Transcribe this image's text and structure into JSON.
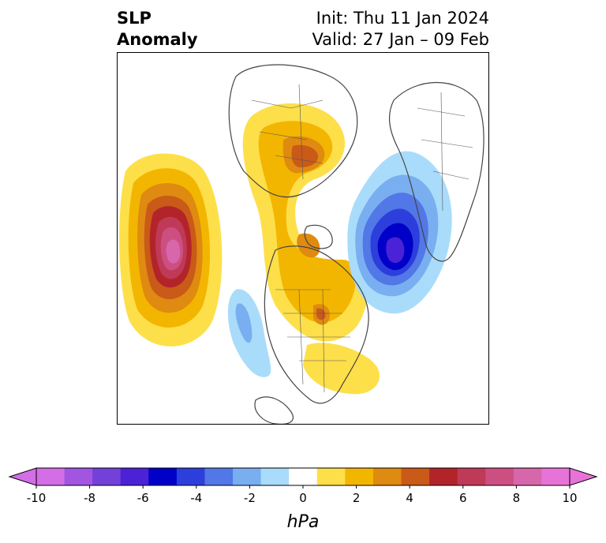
{
  "header": {
    "title_line1": "SLP",
    "title_line2": "Anomaly",
    "init": "Init: Thu 11 Jan 2024",
    "valid": "Valid: 27 Jan – 09 Feb"
  },
  "colorbar": {
    "unit": "hPa",
    "tick_labels": [
      "-10",
      "-8",
      "-6",
      "-4",
      "-2",
      "0",
      "2",
      "4",
      "6",
      "8",
      "10"
    ],
    "levels": [
      -10,
      -9,
      -8,
      -7,
      -6,
      -5,
      -4,
      -3,
      -2,
      -1,
      1,
      2,
      3,
      4,
      5,
      6,
      7,
      8,
      9,
      10
    ],
    "colors": [
      "#d36ee6",
      "#a155e0",
      "#7340d9",
      "#4b22d6",
      "#0000c8",
      "#2c3fdc",
      "#5277e6",
      "#79aff0",
      "#a9dcfa",
      "#ffffff",
      "#fddf4a",
      "#f3b600",
      "#df8a10",
      "#c95a18",
      "#b3242a",
      "#bf3a58",
      "#cd4f82",
      "#d866ab",
      "#e873d8"
    ],
    "extend": "both"
  },
  "anomalies": [
    {
      "name": "north-pacific-high",
      "sign": "positive",
      "peak_hpa": 10
    },
    {
      "name": "siberia-arctic-high",
      "sign": "positive",
      "peak_hpa": 5
    },
    {
      "name": "hudson-bay-canada-high",
      "sign": "positive",
      "peak_hpa": 5
    },
    {
      "name": "north-atlantic-europe-low",
      "sign": "negative",
      "peak_hpa": -6
    },
    {
      "name": "us-west-low",
      "sign": "negative",
      "peak_hpa": -2
    }
  ]
}
